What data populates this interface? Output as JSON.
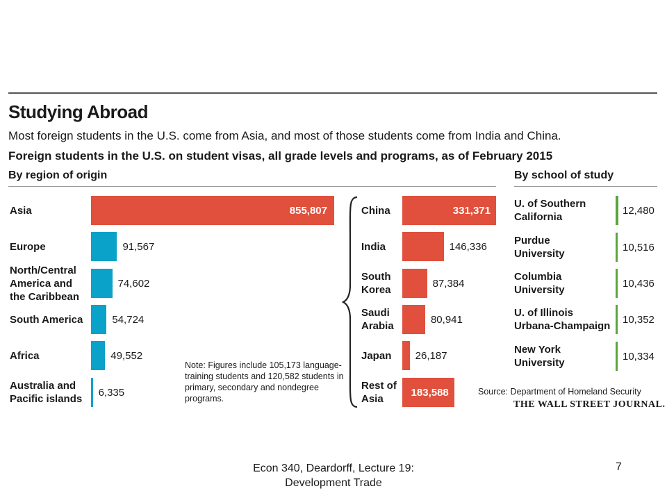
{
  "title": "Studying Abroad",
  "subtitle": "Most foreign students in the U.S. come from Asia, and most of those students come from India and China.",
  "description": "Foreign students in the U.S. on student visas, all grade levels and programs, as of February 2015",
  "note": "Note: Figures include 105,173 language-training students and 120,582 students in primary, secondary and nondegree programs.",
  "source": "Source: Department of Homeland Security",
  "publisher": "THE WALL STREET JOURNAL.",
  "footer": {
    "caption": "Econ 340, Deardorff, Lecture 19: Development Trade",
    "page_number": "7"
  },
  "colors": {
    "region": "#0aa2c8",
    "asia": "#e0503c",
    "school": "#5aa53c"
  },
  "chart_data": [
    {
      "type": "bar",
      "title": "By region of origin",
      "categories": [
        "Asia",
        "Europe",
        "North/Central America and the Caribbean",
        "South America",
        "Africa",
        "Australia and Pacific islands"
      ],
      "category_lines": [
        [
          "Asia"
        ],
        [
          "Europe"
        ],
        [
          "North/Central",
          "America and",
          "the Caribbean"
        ],
        [
          "South America"
        ],
        [
          "Africa"
        ],
        [
          "Australia and",
          "Pacific islands"
        ]
      ],
      "values": [
        855807,
        91567,
        74602,
        54724,
        49552,
        6335
      ],
      "value_labels": [
        "855,807",
        "91,567",
        "74,602",
        "54,724",
        "49,552",
        "6,335"
      ],
      "orientation": "horizontal"
    },
    {
      "type": "bar",
      "title": "",
      "categories": [
        "China",
        "India",
        "South Korea",
        "Saudi Arabia",
        "Japan",
        "Rest of Asia"
      ],
      "category_lines": [
        [
          "China"
        ],
        [
          "India"
        ],
        [
          "South",
          "Korea"
        ],
        [
          "Saudi",
          "Arabia"
        ],
        [
          "Japan"
        ],
        [
          "Rest of",
          "Asia"
        ]
      ],
      "values": [
        331371,
        146336,
        87384,
        80941,
        26187,
        183588
      ],
      "value_labels": [
        "331,371",
        "146,336",
        "87,384",
        "80,941",
        "26,187",
        "183,588"
      ],
      "orientation": "horizontal"
    },
    {
      "type": "bar",
      "title": "By school of study",
      "categories": [
        "U. of Southern California",
        "Purdue University",
        "Columbia University",
        "U. of Illinois Urbana-Champaign",
        "New York University"
      ],
      "category_lines": [
        [
          "U. of Southern",
          "California"
        ],
        [
          "Purdue",
          "University"
        ],
        [
          "Columbia",
          "University"
        ],
        [
          "U. of Illinois",
          "Urbana-Champaign"
        ],
        [
          "New York",
          "University"
        ]
      ],
      "values": [
        12480,
        10516,
        10436,
        10352,
        10334
      ],
      "value_labels": [
        "12,480",
        "10,516",
        "10,436",
        "10,352",
        "10,334"
      ],
      "orientation": "horizontal"
    }
  ]
}
